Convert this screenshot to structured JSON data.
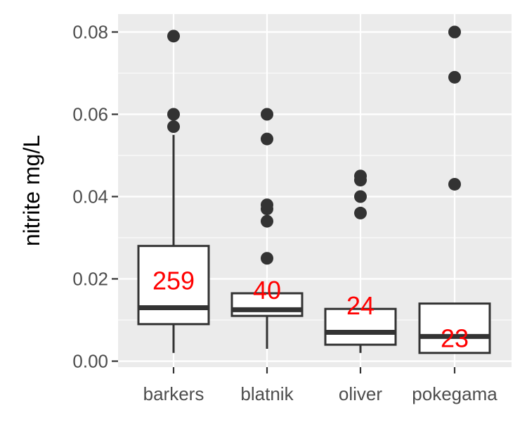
{
  "chart_data": {
    "type": "boxplot",
    "title": "",
    "xlabel": "",
    "ylabel": "nitrite mg/L",
    "ylim": [
      -0.001,
      0.0822
    ],
    "yticks": [
      {
        "value": 0.0,
        "label": "0.00"
      },
      {
        "value": 0.02,
        "label": "0.02"
      },
      {
        "value": 0.04,
        "label": "0.04"
      },
      {
        "value": 0.06,
        "label": "0.06"
      },
      {
        "value": 0.08,
        "label": "0.08"
      }
    ],
    "grid": true,
    "legend": "none",
    "categories": [
      "barkers",
      "blatnik",
      "oliver",
      "pokegama"
    ],
    "boxes": [
      {
        "name": "barkers",
        "whisker_low": 0.002,
        "q1": 0.009,
        "median": 0.013,
        "q3": 0.028,
        "whisker_high": 0.055,
        "outliers": [
          0.057,
          0.06,
          0.079
        ],
        "count": "259"
      },
      {
        "name": "blatnik",
        "whisker_low": 0.003,
        "q1": 0.011,
        "median": 0.0125,
        "q3": 0.0165,
        "whisker_high": 0.0165,
        "outliers": [
          0.025,
          0.034,
          0.037,
          0.038,
          0.054,
          0.06
        ],
        "count": "40"
      },
      {
        "name": "oliver",
        "whisker_low": 0.002,
        "q1": 0.004,
        "median": 0.007,
        "q3": 0.0127,
        "whisker_high": 0.0127,
        "outliers": [
          0.036,
          0.04,
          0.044,
          0.045
        ],
        "count": "24"
      },
      {
        "name": "pokegama",
        "whisker_low": 0.002,
        "q1": 0.002,
        "median": 0.006,
        "q3": 0.014,
        "whisker_high": 0.014,
        "outliers": [
          0.043,
          0.069,
          0.08
        ],
        "count": "23"
      }
    ],
    "colors": {
      "panel": "#ebebeb",
      "grid": "#ffffff",
      "box_line": "#333333",
      "box_fill": "#ffffff",
      "outlier": "#333333",
      "count_text": "#ff0000",
      "tick_text": "#4d4d4d"
    }
  }
}
